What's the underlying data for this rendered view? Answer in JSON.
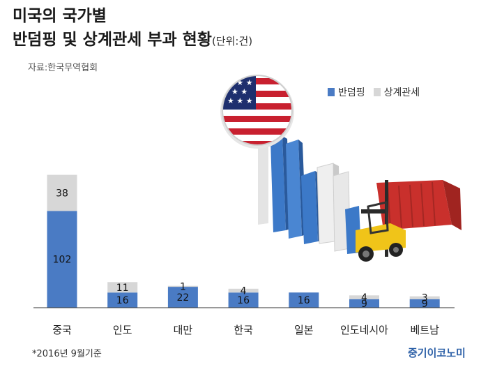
{
  "title_line1": "미국의 국가별",
  "title_line2": "반덤핑 및 상계관세 부과 현황",
  "title_unit": "(단위:건)",
  "source": "자료:한국무역협회",
  "footnote": "*2016년 9월기준",
  "brand": "중기이코노미",
  "colors": {
    "antidumping": "#4a7bc4",
    "countervailing": "#d7d7d7",
    "axis": "#333333"
  },
  "chart_data": {
    "type": "bar",
    "stacked": true,
    "categories": [
      "중국",
      "인도",
      "대만",
      "한국",
      "일본",
      "인도네시아",
      "베트남"
    ],
    "series": [
      {
        "name": "반덤핑",
        "values": [
          102,
          16,
          22,
          16,
          16,
          9,
          9
        ]
      },
      {
        "name": "상계관세",
        "values": [
          38,
          11,
          1,
          4,
          0,
          4,
          3
        ]
      }
    ],
    "ylim": [
      0,
      140
    ],
    "legend_position": "top-right",
    "grid": false
  }
}
